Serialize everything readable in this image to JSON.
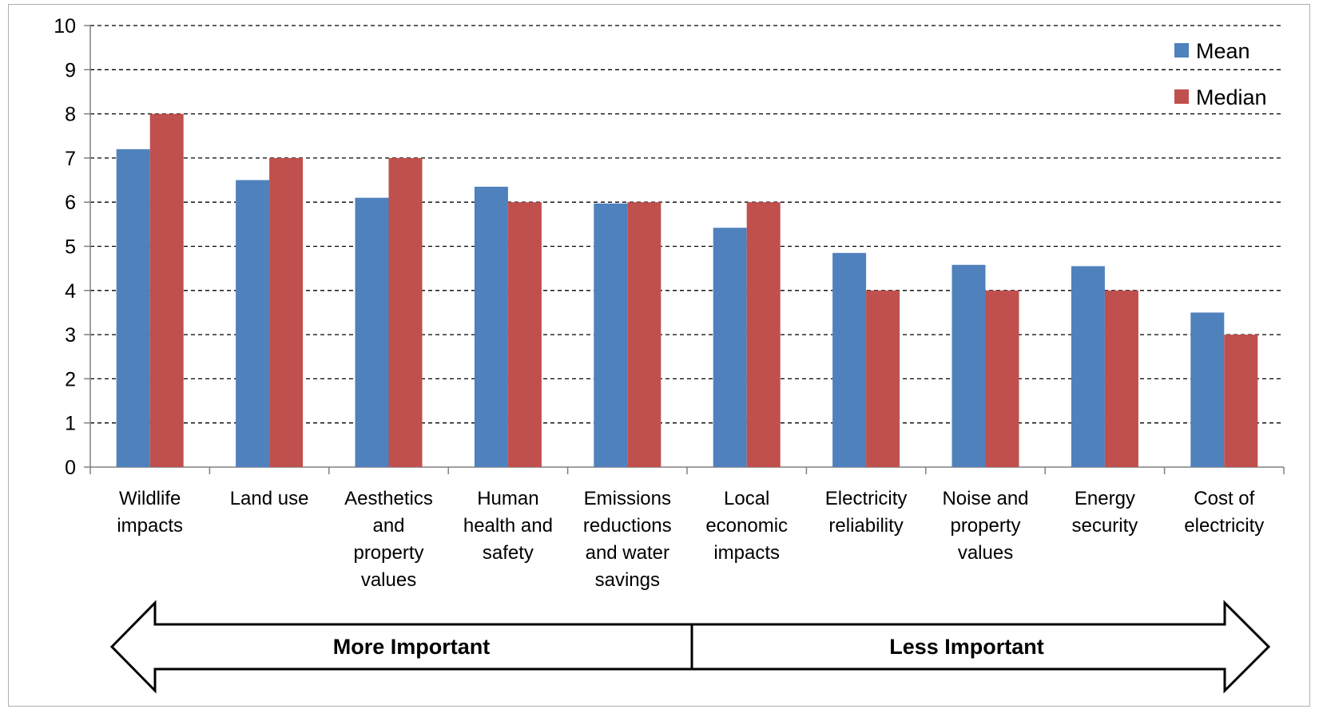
{
  "chart_data": {
    "type": "bar",
    "title": "",
    "xlabel": "",
    "ylabel": "",
    "ylim": [
      0,
      10
    ],
    "yticks": [
      "0",
      "1",
      "2",
      "3",
      "4",
      "5",
      "6",
      "7",
      "8",
      "9",
      "10"
    ],
    "grid": true,
    "legend_position": "top-right",
    "categories": [
      [
        "Wildlife",
        "impacts"
      ],
      [
        "Land use"
      ],
      [
        "Aesthetics",
        "and",
        "property",
        "values"
      ],
      [
        "Human",
        "health and",
        "safety"
      ],
      [
        "Emissions",
        "reductions",
        "and water",
        "savings"
      ],
      [
        "Local",
        "economic",
        "impacts"
      ],
      [
        "Electricity",
        "reliability"
      ],
      [
        "Noise and",
        "property",
        "values"
      ],
      [
        "Energy",
        "security"
      ],
      [
        "Cost of",
        "electricity"
      ]
    ],
    "series": [
      {
        "name": "Mean",
        "color": "#4f81bd",
        "values": [
          7.2,
          6.5,
          6.1,
          6.35,
          5.97,
          5.42,
          4.85,
          4.58,
          4.55,
          3.5
        ]
      },
      {
        "name": "Median",
        "color": "#c0504d",
        "values": [
          8,
          7,
          7,
          6,
          6,
          6,
          4,
          4,
          4,
          3
        ]
      }
    ],
    "annotations": {
      "left": "More Important",
      "right": "Less Important"
    }
  }
}
